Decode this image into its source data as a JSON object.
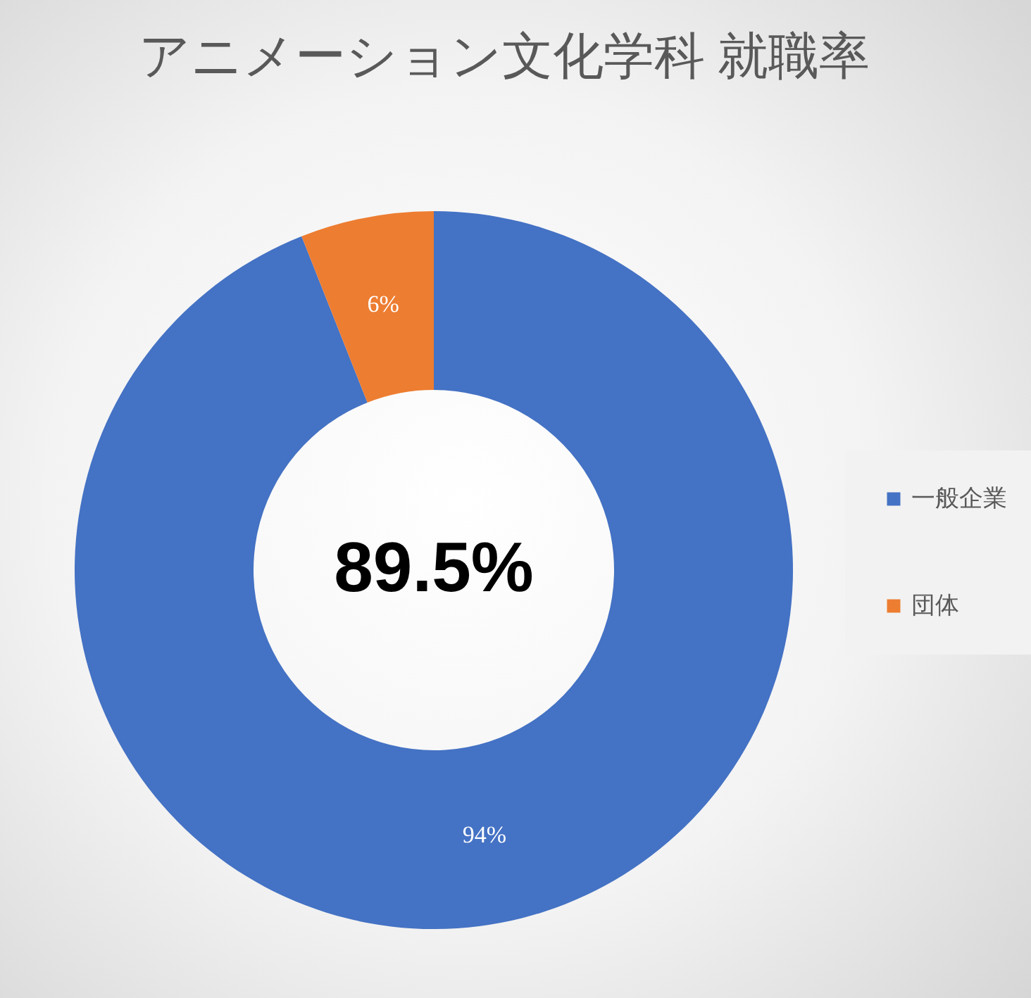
{
  "chart_data": {
    "type": "donut",
    "title": "アニメーション文化学科  就職率",
    "categories": [
      "一般企業",
      "団体"
    ],
    "values": [
      94,
      6
    ],
    "colors": [
      "#4472c4",
      "#ed7d31"
    ],
    "value_labels": [
      "94%",
      "6%"
    ],
    "legend": "right",
    "annotations": [
      "89.5%"
    ]
  }
}
